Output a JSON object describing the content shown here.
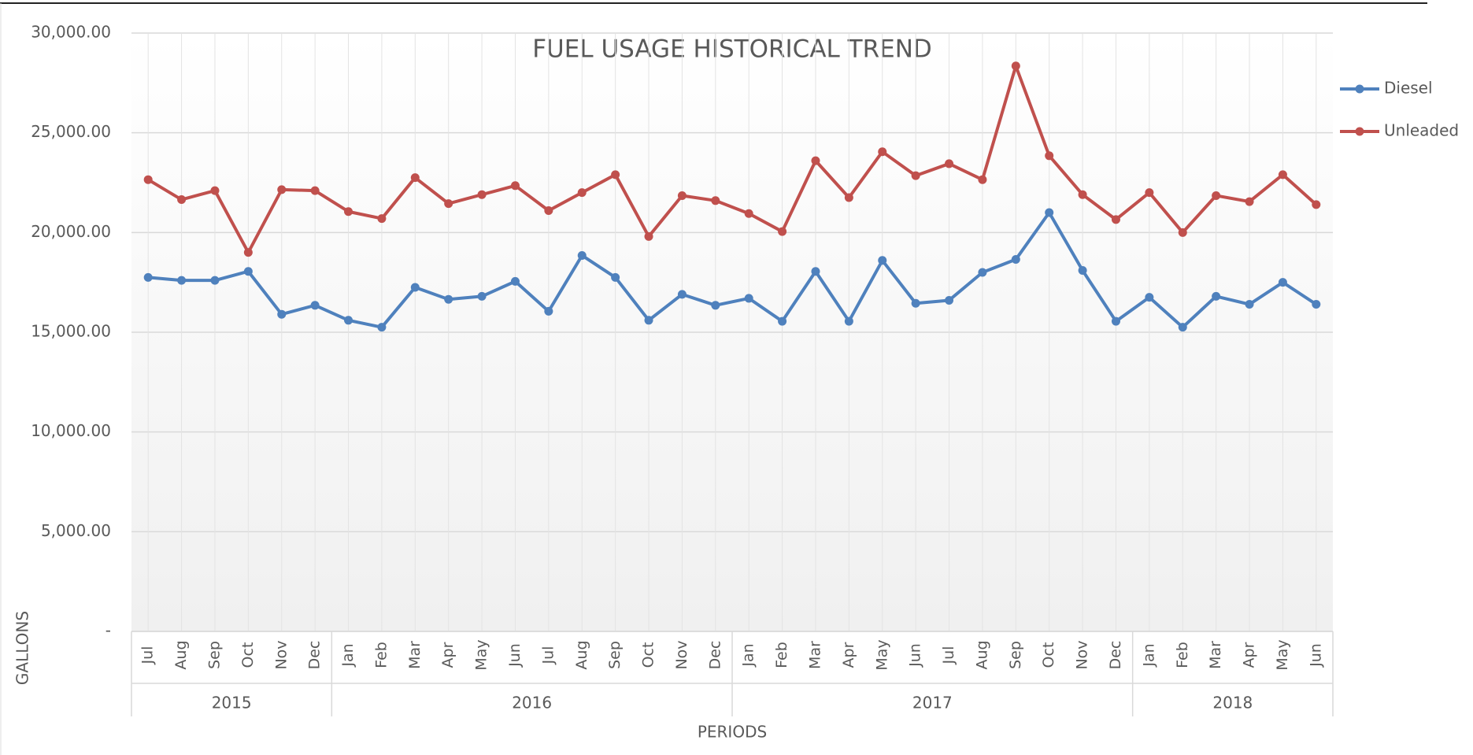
{
  "chart_data": {
    "type": "line",
    "title": "FUEL USAGE HISTORICAL TREND",
    "x_label": "PERIODS",
    "y_label": "GALLONS",
    "category_groups": [
      {
        "label": "2015",
        "categories": [
          "Jul",
          "Aug",
          "Sep",
          "Oct",
          "Nov",
          "Dec"
        ]
      },
      {
        "label": "2016",
        "categories": [
          "Jan",
          "Feb",
          "Mar",
          "Apr",
          "May",
          "Jun",
          "Jul",
          "Aug",
          "Sep",
          "Oct",
          "Nov",
          "Dec"
        ]
      },
      {
        "label": "2017",
        "categories": [
          "Jan",
          "Feb",
          "Mar",
          "Apr",
          "May",
          "Jun",
          "Jul",
          "Aug",
          "Sep",
          "Oct",
          "Nov",
          "Dec"
        ]
      },
      {
        "label": "2018",
        "categories": [
          "Jan",
          "Feb",
          "Mar",
          "Apr",
          "May",
          "Jun"
        ]
      }
    ],
    "series": [
      {
        "name": "Diesel",
        "color": "#4f81bd",
        "values": [
          17750,
          17600,
          17600,
          18050,
          15900,
          16350,
          15600,
          15250,
          17250,
          16650,
          16800,
          17550,
          16050,
          18850,
          17750,
          15600,
          16900,
          16350,
          16700,
          15550,
          18050,
          15550,
          18600,
          16450,
          16600,
          18000,
          18650,
          21000,
          18100,
          15550,
          16750,
          15250,
          16800,
          16400,
          17500,
          16400
        ]
      },
      {
        "name": "Unleaded",
        "color": "#c0504d",
        "values": [
          22650,
          21650,
          22100,
          19000,
          22150,
          22100,
          21050,
          20700,
          22750,
          21450,
          21900,
          22350,
          21100,
          22000,
          22900,
          19800,
          21850,
          21600,
          20950,
          20050,
          23600,
          21750,
          24050,
          22850,
          23450,
          22650,
          28350,
          23850,
          21900,
          20650,
          22000,
          20000,
          21850,
          21550,
          22900,
          21400
        ]
      }
    ],
    "ylim": [
      0,
      30000
    ],
    "yticks": [
      {
        "value": 0,
        "label": "-"
      },
      {
        "value": 5000,
        "label": "5,000.00"
      },
      {
        "value": 10000,
        "label": "10,000.00"
      },
      {
        "value": 15000,
        "label": "15,000.00"
      },
      {
        "value": 20000,
        "label": "20,000.00"
      },
      {
        "value": 25000,
        "label": "25,000.00"
      },
      {
        "value": 30000,
        "label": "30,000.00"
      }
    ],
    "grid": true,
    "legend": "right"
  }
}
